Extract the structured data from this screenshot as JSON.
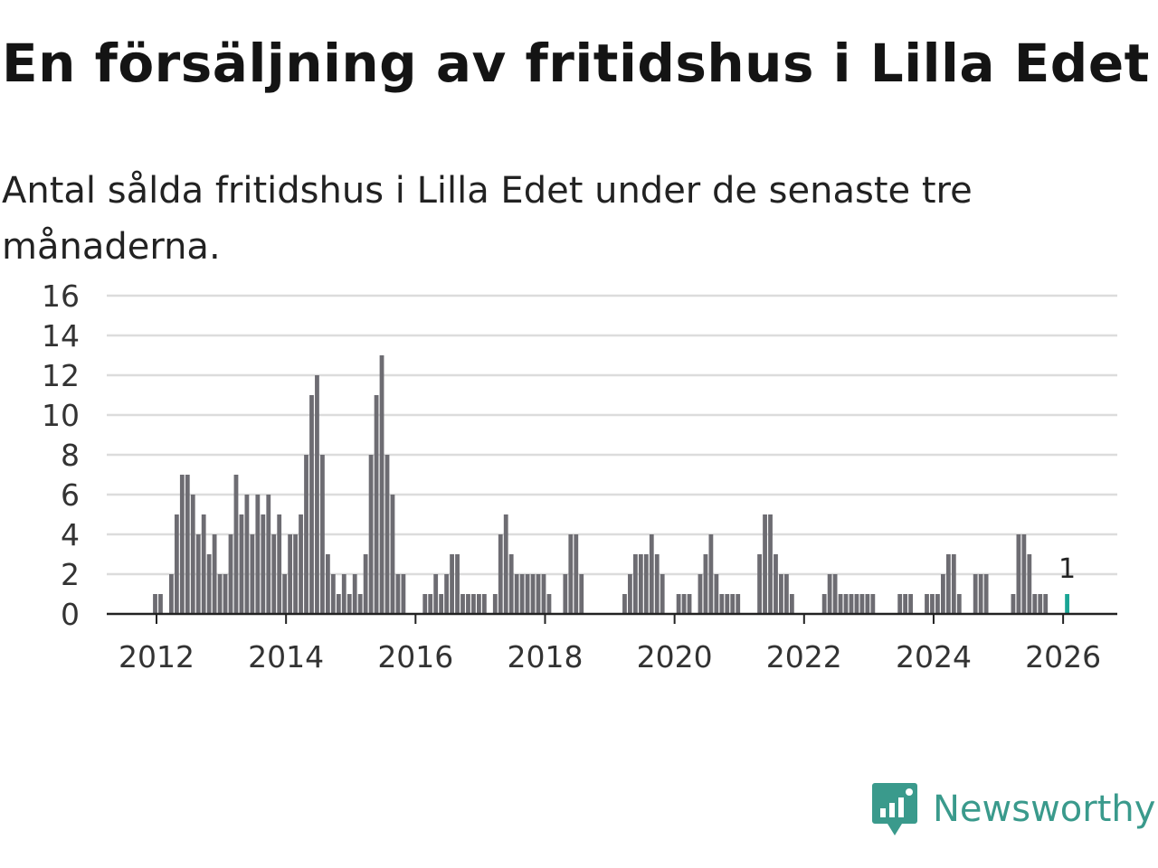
{
  "title": "En försäljning av fritidshus i Lilla Edet",
  "subtitle": "Antal sålda fritidshus i Lilla Edet under de senaste tre månaderna.",
  "logo_text": "Newsworthy",
  "colors": {
    "bar": "#6d6c72",
    "highlight": "#1aa595",
    "grid": "#dcdcdc",
    "axis": "#222222",
    "brand": "#3a9a8c"
  },
  "chart_data": {
    "type": "bar",
    "title": "En försäljning av fritidshus i Lilla Edet",
    "xlabel": "",
    "ylabel": "",
    "start": "2012-01",
    "interval": "month",
    "values": [
      1,
      1,
      0,
      2,
      5,
      7,
      7,
      6,
      4,
      5,
      3,
      4,
      2,
      2,
      4,
      7,
      5,
      6,
      4,
      6,
      5,
      6,
      4,
      5,
      2,
      4,
      4,
      5,
      8,
      11,
      12,
      8,
      3,
      2,
      1,
      2,
      1,
      2,
      1,
      3,
      8,
      11,
      13,
      8,
      6,
      2,
      2,
      0,
      0,
      0,
      1,
      1,
      2,
      1,
      2,
      3,
      3,
      1,
      1,
      1,
      1,
      1,
      0,
      1,
      4,
      5,
      3,
      2,
      2,
      2,
      2,
      2,
      2,
      1,
      0,
      0,
      2,
      4,
      4,
      2,
      0,
      0,
      0,
      0,
      0,
      0,
      0,
      1,
      2,
      3,
      3,
      3,
      4,
      3,
      2,
      0,
      0,
      1,
      1,
      1,
      0,
      2,
      3,
      4,
      2,
      1,
      1,
      1,
      1,
      0,
      0,
      0,
      3,
      5,
      5,
      3,
      2,
      2,
      1,
      0,
      0,
      0,
      0,
      0,
      1,
      2,
      2,
      1,
      1,
      1,
      1,
      1,
      1,
      1,
      0,
      0,
      0,
      0,
      1,
      1,
      1,
      0,
      0,
      1,
      1,
      1,
      2,
      3,
      3,
      1,
      0,
      0,
      2,
      2,
      2,
      0,
      0,
      0,
      0,
      1,
      4,
      4,
      3,
      1,
      1,
      1,
      0,
      0,
      0,
      1
    ],
    "highlight_last": true,
    "last_label": "1",
    "ylim": [
      0,
      16
    ],
    "yticks": [
      "0",
      "2",
      "4",
      "6",
      "8",
      "10",
      "12",
      "14",
      "16"
    ],
    "xticks": [
      "2012",
      "2014",
      "2016",
      "2018",
      "2020",
      "2022",
      "2024",
      "2026"
    ],
    "grid": true
  }
}
